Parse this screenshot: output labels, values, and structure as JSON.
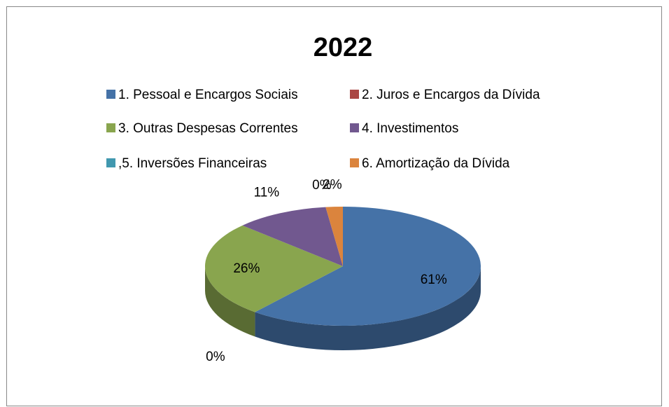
{
  "chart_data": {
    "type": "pie",
    "title": "2022",
    "categories": [
      "1. Pessoal e Encargos Sociais",
      "2. Juros e Encargos da Dívida",
      "3. Outras Despesas Correntes",
      "4. Investimentos",
      ",5. Inversões Financeiras",
      "6. Amortização da Dívida"
    ],
    "values": [
      61,
      0,
      26,
      11,
      0,
      2
    ],
    "value_labels": [
      "61%",
      "0%",
      "26%",
      "11%",
      "0%",
      "2%"
    ],
    "colors": [
      "#4572a7",
      "#aa4643",
      "#89a54e",
      "#71588f",
      "#4198af",
      "#db843d"
    ],
    "legend": "top"
  }
}
